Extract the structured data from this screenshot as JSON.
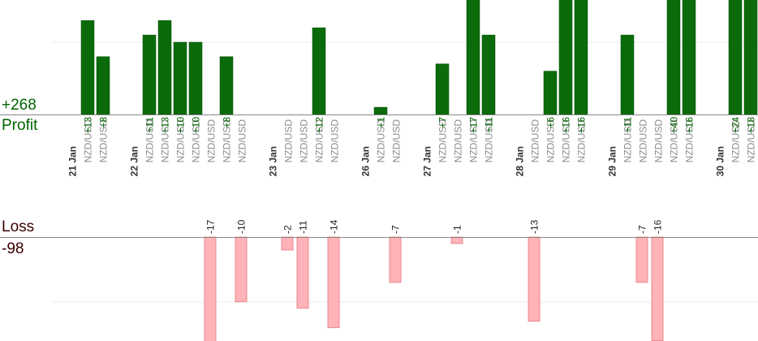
{
  "summary": {
    "profit_total": "+268",
    "profit_label": "Profit",
    "loss_label": "Loss",
    "loss_total": "-98"
  },
  "colors": {
    "profit_bar": "#0b6b0b",
    "profit_bar_edge": "#004d00",
    "profit_text": "#006400",
    "loss_bar": "#ffb3b8",
    "loss_bar_edge": "#e88a90",
    "loss_text": "#3b0000",
    "date_text": "#333333",
    "pair_text": "#8c8c8c",
    "axis": "#888888",
    "grid": "#ebebeb"
  },
  "chart_data": {
    "type": "bar",
    "profit_scale_max": 25,
    "loss_scale_max": 20,
    "grid": true,
    "slots": [
      {
        "kind": "date",
        "label": "21 Jan"
      },
      {
        "kind": "trade",
        "pair": "NZD/USD",
        "value": 13,
        "label": "+13"
      },
      {
        "kind": "trade",
        "pair": "NZD/USD",
        "value": 8,
        "label": "+8"
      },
      {
        "kind": "gap"
      },
      {
        "kind": "date",
        "label": "22 Jan"
      },
      {
        "kind": "trade",
        "pair": "NZD/USD",
        "value": 11,
        "label": "+11"
      },
      {
        "kind": "trade",
        "pair": "NZD/USD",
        "value": 13,
        "label": "+13"
      },
      {
        "kind": "trade",
        "pair": "NZD/USD",
        "value": 10,
        "label": "+10"
      },
      {
        "kind": "trade",
        "pair": "NZD/USD",
        "value": 10,
        "label": "+10"
      },
      {
        "kind": "trade",
        "pair": "NZD/USD",
        "value": -17,
        "label": "-17"
      },
      {
        "kind": "trade",
        "pair": "NZD/USD",
        "value": 8,
        "label": "+8"
      },
      {
        "kind": "trade",
        "pair": "NZD/USD",
        "value": -10,
        "label": "-10"
      },
      {
        "kind": "gap"
      },
      {
        "kind": "date",
        "label": "23 Jan"
      },
      {
        "kind": "trade",
        "pair": "NZD/USD",
        "value": -2,
        "label": "-2"
      },
      {
        "kind": "trade",
        "pair": "NZD/USD",
        "value": -11,
        "label": "-11"
      },
      {
        "kind": "trade",
        "pair": "NZD/USD",
        "value": 12,
        "label": "+12"
      },
      {
        "kind": "trade",
        "pair": "NZD/USD",
        "value": -14,
        "label": "-14"
      },
      {
        "kind": "gap"
      },
      {
        "kind": "date",
        "label": "26 Jan"
      },
      {
        "kind": "trade",
        "pair": "NZD/USD",
        "value": 1,
        "label": "+1"
      },
      {
        "kind": "trade",
        "pair": "NZD/USD",
        "value": -7,
        "label": "-7"
      },
      {
        "kind": "gap"
      },
      {
        "kind": "date",
        "label": "27 Jan"
      },
      {
        "kind": "trade",
        "pair": "NZD/USD",
        "value": 7,
        "label": "+7"
      },
      {
        "kind": "trade",
        "pair": "NZD/USD",
        "value": -1,
        "label": "-1"
      },
      {
        "kind": "trade",
        "pair": "NZD/USD",
        "value": 17,
        "label": "+17"
      },
      {
        "kind": "trade",
        "pair": "NZD/USD",
        "value": 11,
        "label": "+11"
      },
      {
        "kind": "gap"
      },
      {
        "kind": "date",
        "label": "28 Jan"
      },
      {
        "kind": "trade",
        "pair": "NZD/USD",
        "value": -13,
        "label": "-13"
      },
      {
        "kind": "trade",
        "pair": "NZD/USD",
        "value": 6,
        "label": "+6"
      },
      {
        "kind": "trade",
        "pair": "NZD/USD",
        "value": 16,
        "label": "+16"
      },
      {
        "kind": "trade",
        "pair": "NZD/USD",
        "value": 16,
        "label": "+16"
      },
      {
        "kind": "gap"
      },
      {
        "kind": "date",
        "label": "29 Jan"
      },
      {
        "kind": "trade",
        "pair": "NZD/USD",
        "value": 11,
        "label": "+11"
      },
      {
        "kind": "trade",
        "pair": "NZD/USD",
        "value": -7,
        "label": "-7"
      },
      {
        "kind": "trade",
        "pair": "NZD/USD",
        "value": -16,
        "label": "-16"
      },
      {
        "kind": "trade",
        "pair": "NZD/USD",
        "value": 40,
        "label": "+40"
      },
      {
        "kind": "trade",
        "pair": "NZD/USD",
        "value": 16,
        "label": "+16"
      },
      {
        "kind": "gap"
      },
      {
        "kind": "date",
        "label": "30 Jan"
      },
      {
        "kind": "trade",
        "pair": "NZD/USD",
        "value": 24,
        "label": "+24"
      },
      {
        "kind": "trade",
        "pair": "NZD/USD",
        "value": 18,
        "label": "+18"
      }
    ]
  }
}
